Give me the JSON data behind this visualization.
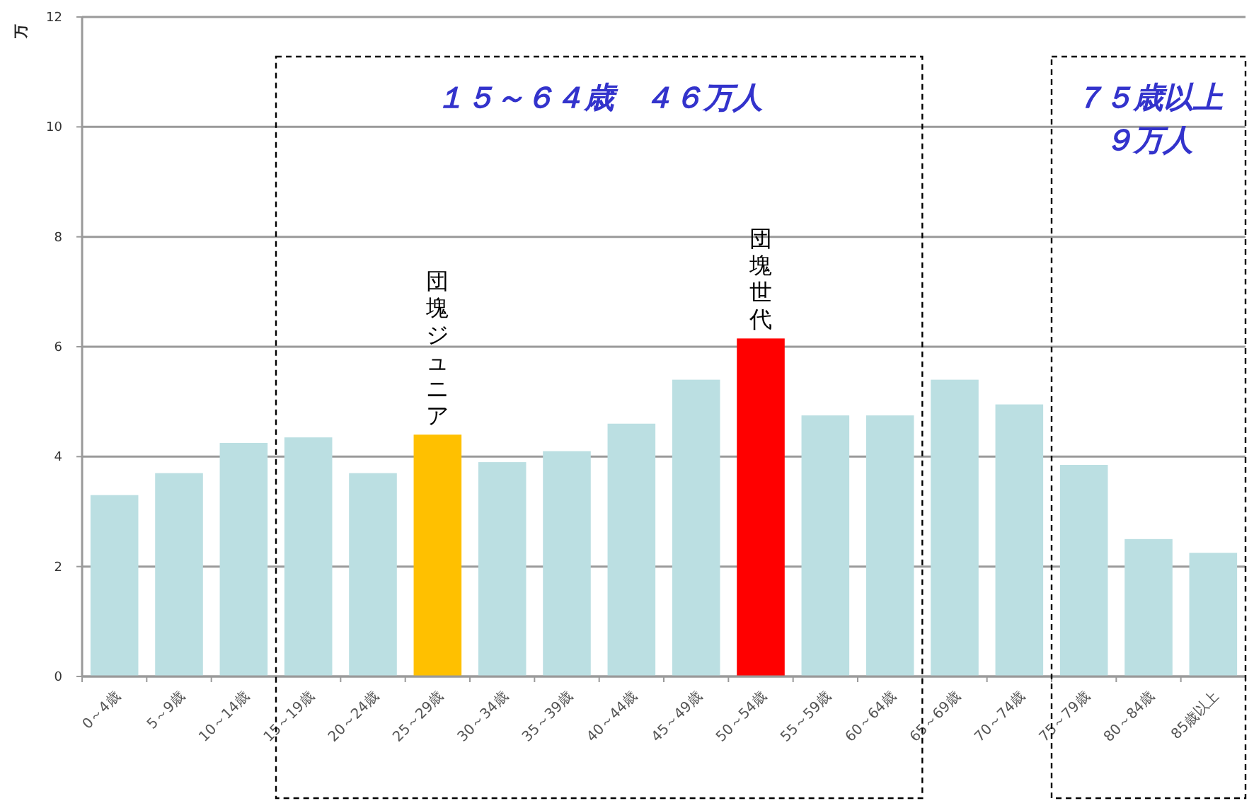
{
  "chart_data": {
    "type": "bar",
    "ylabel": "万",
    "categories": [
      "0～4歳",
      "5～9歳",
      "10～14歳",
      "15～19歳",
      "20～24歳",
      "25～29歳",
      "30～34歳",
      "35～39歳",
      "40～44歳",
      "45～49歳",
      "50～54歳",
      "55～59歳",
      "60～64歳",
      "65～69歳",
      "70～74歳",
      "75～79歳",
      "80～84歳",
      "85歳以上"
    ],
    "values": [
      3.3,
      3.7,
      4.25,
      4.35,
      3.7,
      4.4,
      3.9,
      4.1,
      4.6,
      5.4,
      6.15,
      4.75,
      4.75,
      5.4,
      4.95,
      3.85,
      2.5,
      2.25
    ],
    "colors": [
      "#bbdfe2",
      "#bbdfe2",
      "#bbdfe2",
      "#bbdfe2",
      "#bbdfe2",
      "#ffc000",
      "#bbdfe2",
      "#bbdfe2",
      "#bbdfe2",
      "#bbdfe2",
      "#ff0000",
      "#bbdfe2",
      "#bbdfe2",
      "#bbdfe2",
      "#bbdfe2",
      "#bbdfe2",
      "#bbdfe2",
      "#bbdfe2"
    ],
    "ylim": [
      0,
      12
    ],
    "yticks": [
      0,
      2,
      4,
      6,
      8,
      10,
      12
    ],
    "grid": "y",
    "annotations": [
      "１５～６４歳　４６万人",
      "７５歳以上",
      "９万人",
      {
        "text": "団塊ジュニア",
        "x": "25～29歳",
        "y": 4.4
      },
      {
        "text": "団塊世代",
        "x": "50～54歳",
        "y": 6.15
      }
    ]
  }
}
